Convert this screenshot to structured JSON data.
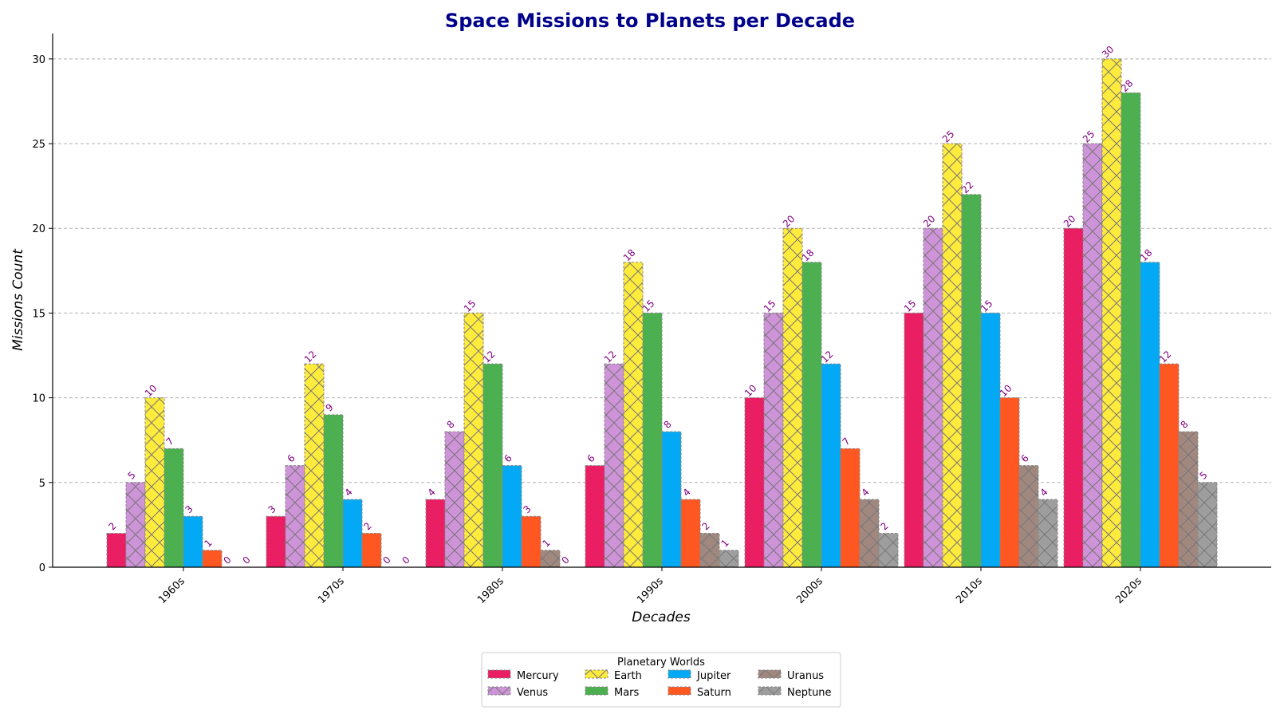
{
  "chart_data": {
    "type": "bar",
    "title": "Space Missions to Planets per Decade",
    "xlabel": "Decades",
    "ylabel": "Missions Count",
    "ylim": [
      0,
      31.5
    ],
    "yticks": [
      0,
      5,
      10,
      15,
      20,
      25,
      30
    ],
    "grid": "horizontal dashed",
    "legend_title": "Planetary Worlds",
    "legend_placement": "bottom-center",
    "categories": [
      "1960s",
      "1970s",
      "1980s",
      "1990s",
      "2000s",
      "2010s",
      "2020s"
    ],
    "series": [
      {
        "name": "Mercury",
        "color": "#e91e63",
        "hatch": "none",
        "values": [
          2,
          3,
          4,
          6,
          10,
          15,
          20
        ]
      },
      {
        "name": "Venus",
        "color": "#ce93d8",
        "hatch": "x",
        "values": [
          5,
          6,
          8,
          12,
          15,
          20,
          25
        ]
      },
      {
        "name": "Earth",
        "color": "#ffeb3b",
        "hatch": "x",
        "values": [
          10,
          12,
          15,
          18,
          20,
          25,
          30
        ]
      },
      {
        "name": "Mars",
        "color": "#4caf50",
        "hatch": "none",
        "values": [
          7,
          9,
          12,
          15,
          18,
          22,
          28
        ]
      },
      {
        "name": "Jupiter",
        "color": "#03a9f4",
        "hatch": "none",
        "values": [
          3,
          4,
          6,
          8,
          12,
          15,
          18
        ]
      },
      {
        "name": "Saturn",
        "color": "#ff5722",
        "hatch": "none",
        "values": [
          1,
          2,
          3,
          4,
          7,
          10,
          12
        ]
      },
      {
        "name": "Uranus",
        "color": "#a1887f",
        "hatch": "x",
        "values": [
          0,
          0,
          1,
          2,
          4,
          6,
          8
        ]
      },
      {
        "name": "Neptune",
        "color": "#9e9e9e",
        "hatch": "x",
        "values": [
          0,
          0,
          0,
          1,
          2,
          4,
          5
        ]
      }
    ]
  }
}
